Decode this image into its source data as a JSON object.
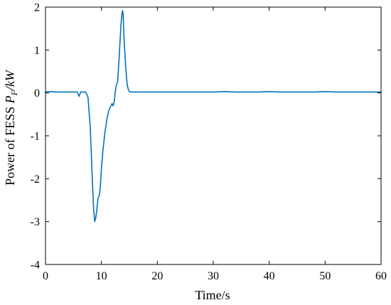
{
  "chart_data": {
    "type": "line",
    "xlabel": "Time/s",
    "ylabel": {
      "prefix": "Power of FESS ",
      "symbol": "P",
      "subscript": "F",
      "unit": "/kW"
    },
    "xlim": [
      0,
      60
    ],
    "ylim": [
      -4,
      2
    ],
    "xticks": [
      0,
      10,
      20,
      30,
      40,
      50,
      60
    ],
    "yticks": [
      -4,
      -3,
      -2,
      -1,
      0,
      1,
      2
    ],
    "grid": false,
    "colors": {
      "line": "#0072bd",
      "axes": "#000000"
    },
    "series": [
      {
        "x": [
          0,
          1,
          2,
          3,
          4,
          5,
          5.7,
          6.0,
          6.3,
          7.2,
          7.6,
          8.0,
          8.4,
          8.6,
          8.8,
          9.0,
          9.2,
          9.4,
          9.6,
          9.8,
          10.0,
          10.3,
          10.6,
          11.0,
          11.3,
          11.6,
          11.9,
          12.1,
          12.3,
          12.5,
          12.7,
          12.9,
          13.2,
          13.5,
          13.7,
          13.8,
          13.9,
          14.0,
          14.2,
          14.4,
          14.6,
          14.8,
          15.0,
          15.3,
          16,
          18,
          20,
          22,
          24,
          26,
          28,
          30,
          32,
          34,
          36,
          38,
          40,
          42,
          44,
          46,
          48,
          50,
          52,
          54,
          56,
          58,
          60
        ],
        "y": [
          0.02,
          0.03,
          0.02,
          0.02,
          0.02,
          0.02,
          0.02,
          -0.08,
          0.02,
          0.02,
          -0.1,
          -0.8,
          -2.1,
          -2.7,
          -3.0,
          -2.9,
          -2.7,
          -2.45,
          -2.4,
          -2.2,
          -1.75,
          -1.3,
          -0.95,
          -0.6,
          -0.42,
          -0.33,
          -0.25,
          -0.3,
          -0.2,
          0.05,
          0.2,
          0.25,
          0.9,
          1.6,
          1.88,
          1.92,
          1.8,
          1.4,
          0.9,
          0.5,
          0.2,
          0.08,
          0.03,
          0.02,
          0.02,
          0.02,
          0.02,
          0.02,
          0.02,
          0.02,
          0.02,
          0.02,
          0.03,
          0.02,
          0.02,
          0.02,
          0.03,
          0.02,
          0.02,
          0.02,
          0.02,
          0.03,
          0.02,
          0.02,
          0.02,
          0.02,
          0.02
        ]
      }
    ]
  }
}
